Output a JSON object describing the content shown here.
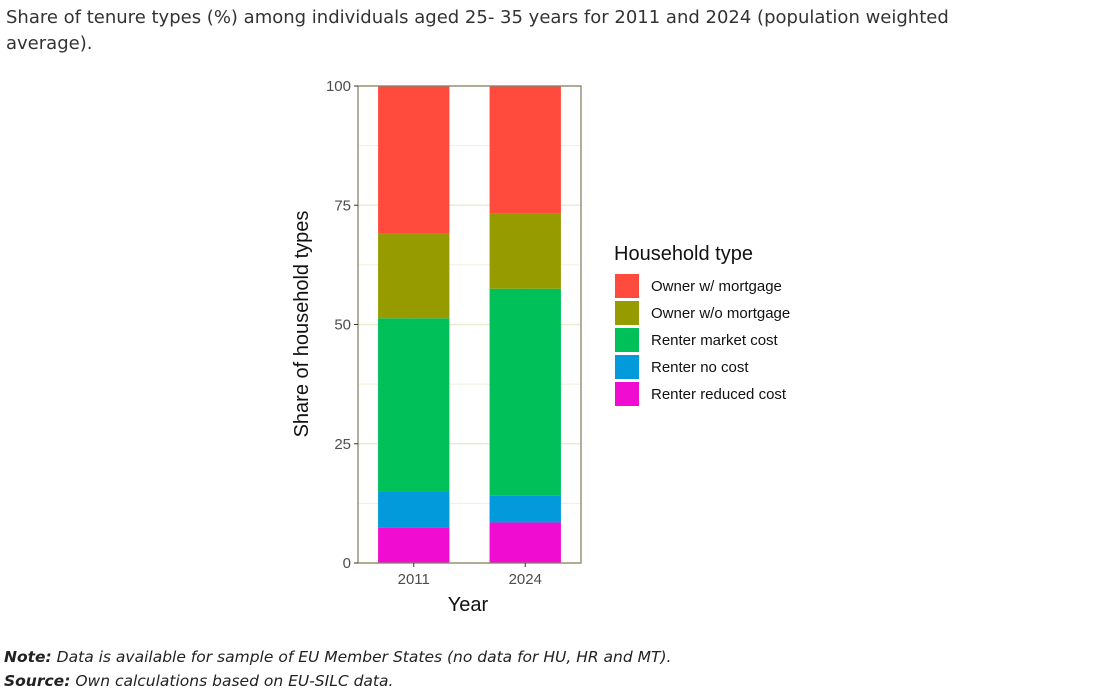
{
  "title": "Share of tenure types (%) among individuals aged 25- 35 years for 2011 and 2024 (population weighted average).",
  "chart_data": {
    "type": "bar",
    "stacked": true,
    "categories": [
      "2011",
      "2024"
    ],
    "xlabel": "Year",
    "ylabel": "Share of household types",
    "ylim": [
      0,
      100
    ],
    "yticks": [
      0,
      25,
      50,
      75,
      100
    ],
    "grid": true,
    "legend_title": "Household type",
    "legend_position": "right",
    "series": [
      {
        "name": "Renter reduced cost",
        "color": "#F00CD0",
        "values": [
          7.5,
          8.5
        ]
      },
      {
        "name": "Renter no cost",
        "color": "#039ADC",
        "values": [
          7.5,
          5.7
        ]
      },
      {
        "name": "Renter market cost",
        "color": "#00C05A",
        "values": [
          36.3,
          43.3
        ]
      },
      {
        "name": "Owner w/o mortgage",
        "color": "#969B00",
        "values": [
          17.7,
          15.7
        ]
      },
      {
        "name": "Owner w/ mortgage",
        "color": "#FF4B3E",
        "values": [
          31.0,
          26.8
        ]
      }
    ],
    "legend_order": [
      "Owner w/ mortgage",
      "Owner w/o mortgage",
      "Renter market cost",
      "Renter no cost",
      "Renter reduced cost"
    ]
  },
  "notes": {
    "note_label": "Note:",
    "note_text": " Data is available for sample of EU Member States (no data for HU, HR and MT).",
    "source_label": "Source:",
    "source_text": " Own calculations based on EU-SILC data."
  }
}
